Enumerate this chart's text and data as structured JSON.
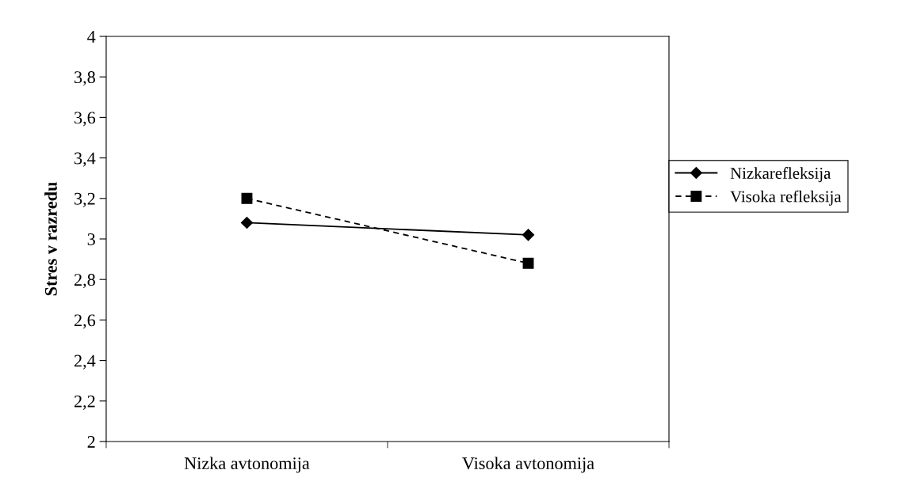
{
  "chart_data": {
    "type": "line",
    "ylabel": "Stres v razredu",
    "categories": [
      "Nizka avtonomija",
      "Visoka avtonomija"
    ],
    "series": [
      {
        "name": "Nizkarefleksija",
        "color": "#000000",
        "values": [
          3.08,
          3.02
        ],
        "marker": "diamond",
        "line_style": "solid"
      },
      {
        "name": "Visoka refleksija",
        "color": "#000000",
        "values": [
          3.2,
          2.88
        ],
        "marker": "square",
        "line_style": "dashed"
      }
    ],
    "ylim": [
      2,
      4
    ],
    "yticks": [
      2,
      {
        "value": 2.2,
        "label": "2,2"
      },
      {
        "value": 2.4,
        "label": "2,4"
      },
      {
        "value": 2.6,
        "label": "2,6"
      },
      {
        "value": 2.8,
        "label": "2,8"
      },
      3,
      {
        "value": 3.2,
        "label": "3,2"
      },
      {
        "value": 3.4,
        "label": "3,4"
      },
      {
        "value": 3.6,
        "label": "3,6"
      },
      {
        "value": 3.8,
        "label": "3,8"
      },
      4
    ],
    "grid": false,
    "legend": "right"
  }
}
